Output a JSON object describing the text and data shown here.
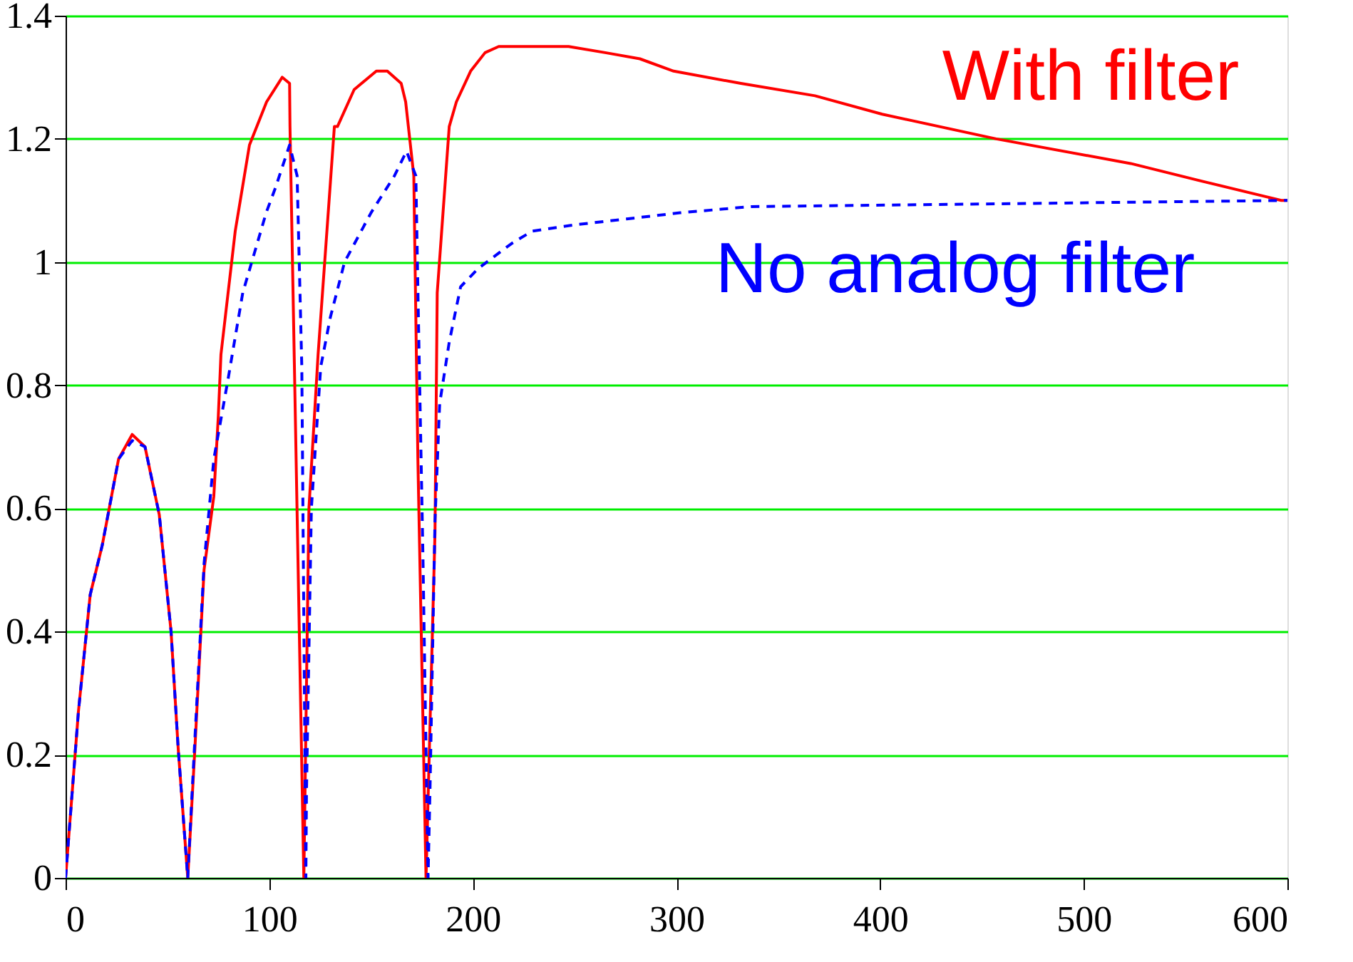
{
  "chart_data": {
    "type": "line",
    "xlim": [
      0,
      600
    ],
    "xticks": [
      0,
      100,
      200,
      300,
      400,
      500,
      600
    ],
    "ylim": [
      0,
      1.4
    ],
    "yticks": [
      0,
      0.2,
      0.4,
      0.6,
      0.8,
      1,
      1.2,
      1.4
    ],
    "grid": "y",
    "series": [
      {
        "name": "With filter",
        "color": "#ff0000",
        "line_style": "solid",
        "x": [
          0,
          6.3,
          12.1,
          18,
          26,
          32.7,
          39,
          46,
          51.8,
          55.3,
          60,
          63.5,
          68,
          72.8,
          75,
          76.3,
          83.3,
          90.3,
          98.7,
          106.4,
          110,
          110.2,
          117,
          119.5,
          124,
          132,
          133.5,
          141.7,
          152.6,
          158,
          164.8,
          167,
          171,
          173,
          177,
          181.4,
          182.5,
          188.4,
          191.9,
          198.9,
          206,
          212.7,
          247,
          265,
          282,
          298.6,
          331.6,
          368,
          401,
          457,
          523,
          559.6,
          597,
          600
        ],
        "values": [
          0,
          0.27,
          0.46,
          0.54,
          0.68,
          0.72,
          0.7,
          0.59,
          0.4,
          0.21,
          0,
          0.21,
          0.5,
          0.62,
          0.75,
          0.85,
          1.05,
          1.19,
          1.26,
          1.3,
          1.29,
          1.22,
          0,
          0.6,
          0.85,
          1.22,
          1.22,
          1.28,
          1.31,
          1.31,
          1.29,
          1.26,
          1.14,
          0.68,
          0,
          0.56,
          0.95,
          1.22,
          1.26,
          1.31,
          1.34,
          1.35,
          1.35,
          1.34,
          1.33,
          1.31,
          1.29,
          1.27,
          1.24,
          1.2,
          1.16,
          1.13,
          1.1,
          1.1
        ]
      },
      {
        "name": "No analog filter",
        "color": "#0000ff",
        "line_style": "dashed",
        "x": [
          0,
          6.3,
          12.1,
          18,
          26,
          32.7,
          39,
          46,
          51.8,
          55.3,
          60,
          62.3,
          68,
          72.8,
          79.8,
          87,
          98.5,
          103,
          110,
          113.7,
          116,
          118,
          118.3,
          120.7,
          125.3,
          130,
          137,
          150,
          161.5,
          167.4,
          172,
          173.2,
          175.5,
          178,
          179,
          181.4,
          183.7,
          188.4,
          194,
          202.8,
          219,
          229,
          249,
          275.5,
          301.8,
          336.6,
          600
        ],
        "values": [
          0,
          0.27,
          0.46,
          0.54,
          0.68,
          0.71,
          0.7,
          0.59,
          0.4,
          0.21,
          0,
          0.15,
          0.51,
          0.68,
          0.81,
          0.95,
          1.08,
          1.12,
          1.19,
          1.14,
          0.83,
          0,
          0.14,
          0.6,
          0.83,
          0.91,
          1,
          1.08,
          1.14,
          1.18,
          1.14,
          0.92,
          0.52,
          0,
          0.15,
          0.58,
          0.77,
          0.87,
          0.96,
          0.99,
          1.03,
          1.05,
          1.06,
          1.07,
          1.08,
          1.09,
          1.1
        ]
      }
    ]
  }
}
